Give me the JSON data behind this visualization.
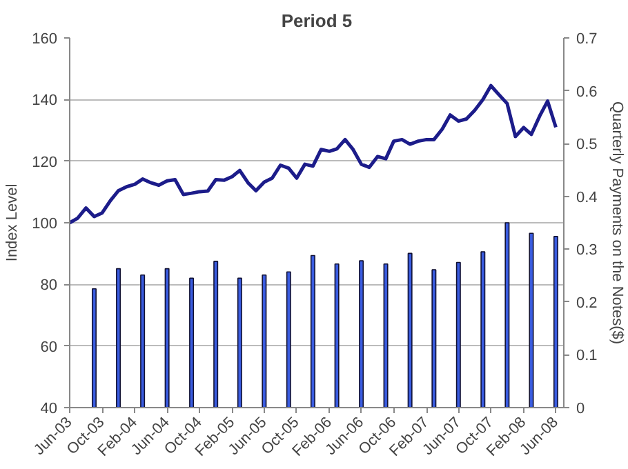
{
  "chart_data": {
    "type": "line",
    "title": "Period 5",
    "ylabel": "Index Level",
    "y2label": "Quarterly Payments on the Notes($)",
    "grid": "y",
    "xlim": [
      "2003-06",
      "2008-07"
    ],
    "xticks": [
      {
        "value": "2003-06",
        "label": "Jun-03"
      },
      {
        "value": "2003-10",
        "label": "Oct-03"
      },
      {
        "value": "2004-02",
        "label": "Feb-04"
      },
      {
        "value": "2004-06",
        "label": "Jun-04"
      },
      {
        "value": "2004-10",
        "label": "Oct-04"
      },
      {
        "value": "2005-02",
        "label": "Feb-05"
      },
      {
        "value": "2005-06",
        "label": "Jun-05"
      },
      {
        "value": "2005-10",
        "label": "Oct-05"
      },
      {
        "value": "2006-02",
        "label": "Feb-06"
      },
      {
        "value": "2006-06",
        "label": "Jun-06"
      },
      {
        "value": "2006-10",
        "label": "Oct-06"
      },
      {
        "value": "2007-02",
        "label": "Feb-07"
      },
      {
        "value": "2007-06",
        "label": "Jun-07"
      },
      {
        "value": "2007-10",
        "label": "Oct-07"
      },
      {
        "value": "2008-02",
        "label": "Feb-08"
      },
      {
        "value": "2008-06",
        "label": "Jun-08"
      }
    ],
    "ylim": [
      40,
      160
    ],
    "yticks": [
      40,
      60,
      80,
      100,
      120,
      140,
      160
    ],
    "y2lim": [
      0,
      0.7
    ],
    "y2ticks": [
      0,
      0.1,
      0.2,
      0.3,
      0.4,
      0.5,
      0.6,
      0.7
    ],
    "series": [
      {
        "type": "bar",
        "axis": "y2",
        "color": "#3a5ce0",
        "x": [
          "2003-09",
          "2003-12",
          "2004-03",
          "2004-06",
          "2004-09",
          "2004-12",
          "2005-03",
          "2005-06",
          "2005-09",
          "2005-12",
          "2006-03",
          "2006-06",
          "2006-09",
          "2006-12",
          "2007-03",
          "2007-06",
          "2007-09",
          "2007-12",
          "2008-03",
          "2008-06"
        ],
        "values": [
          0.225,
          0.263,
          0.251,
          0.263,
          0.245,
          0.277,
          0.245,
          0.251,
          0.257,
          0.288,
          0.272,
          0.278,
          0.272,
          0.292,
          0.261,
          0.275,
          0.295,
          0.35,
          0.33,
          0.324
        ]
      },
      {
        "color": "#1c1c8a",
        "x": [
          "2003-06",
          "2003-07",
          "2003-08",
          "2003-09",
          "2003-10",
          "2003-11",
          "2003-12",
          "2004-01",
          "2004-02",
          "2004-03",
          "2004-04",
          "2004-05",
          "2004-06",
          "2004-07",
          "2004-08",
          "2004-09",
          "2004-10",
          "2004-11",
          "2004-12",
          "2005-01",
          "2005-02",
          "2005-03",
          "2005-04",
          "2005-05",
          "2005-06",
          "2005-07",
          "2005-08",
          "2005-09",
          "2005-10",
          "2005-11",
          "2005-12",
          "2006-01",
          "2006-02",
          "2006-03",
          "2006-04",
          "2006-05",
          "2006-06",
          "2006-07",
          "2006-08",
          "2006-09",
          "2006-10",
          "2006-11",
          "2006-12",
          "2007-01",
          "2007-02",
          "2007-03",
          "2007-04",
          "2007-05",
          "2007-06",
          "2007-07",
          "2007-08",
          "2007-09",
          "2007-10",
          "2007-11",
          "2007-12",
          "2008-01",
          "2008-02",
          "2008-03",
          "2008-04",
          "2008-05",
          "2008-06"
        ],
        "values": [
          100,
          101.5,
          104.8,
          102,
          103.2,
          107.2,
          110.4,
          111.7,
          112.5,
          114.2,
          113,
          112.2,
          113.6,
          114,
          109.2,
          109.6,
          110.1,
          110.3,
          114,
          113.8,
          115,
          117,
          113,
          110.4,
          113.2,
          114.5,
          118.7,
          117.7,
          114.5,
          119,
          118.4,
          123.8,
          123.2,
          124,
          127,
          123.8,
          119,
          118,
          121.5,
          120.8,
          126.5,
          127,
          125.5,
          126.5,
          127,
          127,
          130.4,
          135,
          133,
          133.7,
          136.5,
          140,
          144.5,
          141.5,
          138.7,
          128,
          130.9,
          128.7,
          134.6,
          139.5,
          131
        ]
      }
    ]
  }
}
